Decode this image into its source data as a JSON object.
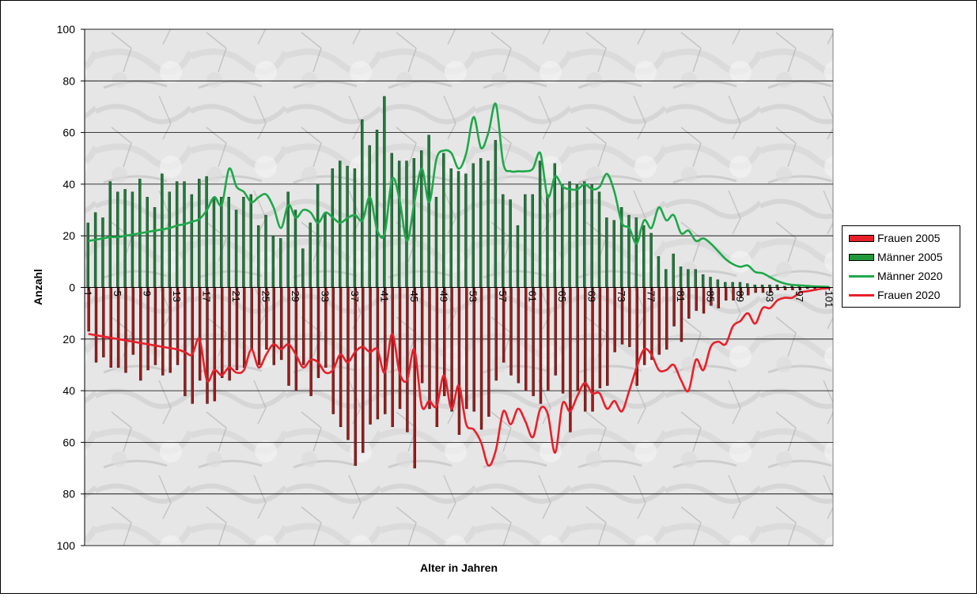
{
  "chart_data": {
    "type": "bar",
    "xlabel": "Alter in Jahren",
    "ylabel": "Anzahl",
    "ylim": [
      -100,
      100
    ],
    "yticks": [
      100,
      80,
      60,
      40,
      20,
      0,
      20,
      40,
      60,
      80,
      100
    ],
    "x_start": 1,
    "x_end": 101,
    "x_ticks": [
      1,
      5,
      9,
      13,
      17,
      21,
      25,
      29,
      33,
      37,
      41,
      45,
      49,
      53,
      57,
      61,
      65,
      69,
      73,
      77,
      81,
      85,
      89,
      93,
      97,
      101
    ],
    "grid": true,
    "legend_position": "right",
    "colors": {
      "frauen_2005": "#9b1c1c",
      "maenner_2005": "#1f7a3a",
      "maenner_2020": "#1fa84a",
      "frauen_2020": "#e8202a"
    },
    "series": [
      {
        "name": "Frauen 2005",
        "kind": "bar",
        "direction": "down",
        "values": [
          17,
          29,
          27,
          31,
          31,
          33,
          26,
          36,
          32,
          30,
          34,
          33,
          30,
          42,
          45,
          36,
          45,
          44,
          35,
          36,
          32,
          31,
          24,
          30,
          24,
          30,
          28,
          38,
          40,
          30,
          42,
          35,
          31,
          49,
          54,
          59,
          69,
          64,
          53,
          51,
          49,
          54,
          47,
          56,
          70,
          37,
          47,
          54,
          42,
          48,
          57,
          47,
          48,
          55,
          50,
          36,
          29,
          34,
          37,
          40,
          42,
          45,
          40,
          34,
          41,
          56,
          40,
          48,
          48,
          39,
          38,
          25,
          22,
          23,
          38,
          30,
          28,
          26,
          24,
          15,
          21,
          12,
          9,
          10,
          7,
          8,
          5,
          5,
          4,
          3,
          2,
          2,
          2,
          1,
          1,
          1,
          1,
          0.5,
          0.5,
          0.3,
          0.2
        ]
      },
      {
        "name": "Männer 2005",
        "kind": "bar",
        "direction": "up",
        "values": [
          25,
          29,
          27,
          41,
          37,
          38,
          37,
          42,
          35,
          31,
          44,
          37,
          41,
          41,
          36,
          42,
          43,
          35,
          35,
          35,
          30,
          35,
          36,
          24,
          28,
          20,
          19,
          37,
          30,
          15,
          25,
          40,
          29,
          46,
          49,
          47,
          46,
          65,
          55,
          61,
          74,
          52,
          49,
          49,
          50,
          53,
          59,
          35,
          52,
          46,
          45,
          44,
          48,
          50,
          49,
          57,
          36,
          34,
          24,
          36,
          36,
          49,
          36,
          48,
          40,
          41,
          40,
          41,
          40,
          37,
          27,
          26,
          31,
          28,
          27,
          24,
          21,
          12,
          7,
          13,
          8,
          7,
          7,
          5,
          4,
          3,
          2,
          2,
          2,
          1.5,
          1,
          1,
          1,
          1,
          0.5,
          0.5,
          0.5,
          0.3,
          0.2,
          0.2,
          0.1
        ]
      },
      {
        "name": "Männer 2020",
        "kind": "line",
        "direction": "up",
        "values": [
          18,
          18.5,
          19,
          19.5,
          19.5,
          20,
          20.5,
          21,
          21.5,
          22,
          22.5,
          23,
          24,
          24.5,
          25.5,
          26.5,
          30,
          35,
          32,
          46,
          39,
          37,
          33,
          35,
          36,
          31,
          23,
          32,
          27,
          30,
          29,
          25,
          29,
          27,
          25,
          27,
          28,
          26,
          35,
          22,
          21,
          42,
          34,
          18,
          33,
          46,
          33,
          50,
          53,
          52,
          46,
          52,
          66,
          54,
          60,
          71,
          48,
          45,
          45,
          45,
          46,
          52,
          35,
          43,
          39,
          38,
          38,
          40,
          38,
          39,
          44,
          37,
          25,
          23,
          17,
          26,
          23,
          31,
          26,
          28,
          21,
          22,
          18,
          19,
          17,
          14,
          11,
          9,
          8,
          8.5,
          6,
          5.5,
          4,
          2.5,
          1.5,
          1,
          0.8,
          0.6,
          0.4,
          0.3,
          0.2
        ]
      },
      {
        "name": "Frauen 2020",
        "kind": "line",
        "direction": "down",
        "values": [
          18,
          18.5,
          19,
          19.5,
          20,
          20.5,
          21,
          21.5,
          22,
          22.5,
          23,
          23.5,
          24,
          25,
          26,
          20,
          36,
          32,
          34,
          31,
          33,
          32,
          24,
          31,
          26,
          22,
          24,
          22,
          26,
          31,
          28,
          29,
          33,
          32,
          26,
          29,
          25,
          23,
          25,
          24,
          33,
          18,
          33,
          36,
          24,
          46,
          44,
          46,
          34,
          47,
          38,
          53,
          55,
          60,
          69,
          63,
          48,
          53,
          47,
          52,
          58,
          47,
          49,
          64,
          45,
          48,
          42,
          37,
          41,
          41,
          47,
          44,
          48,
          40,
          31,
          24,
          26,
          32,
          32,
          30,
          36,
          40,
          28,
          32,
          23,
          21,
          22,
          15,
          13,
          10,
          14,
          8,
          8,
          5,
          4,
          4,
          2,
          1.5,
          1,
          0.5,
          0.3
        ]
      }
    ]
  }
}
